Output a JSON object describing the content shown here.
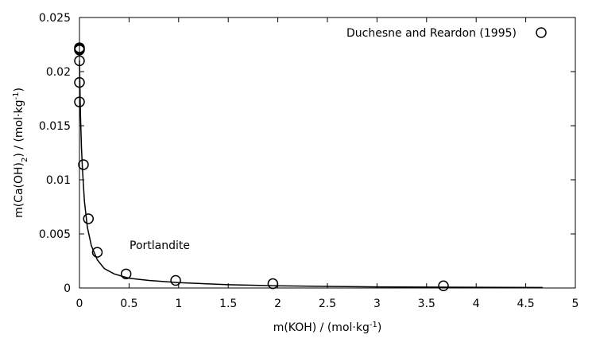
{
  "chart_data": {
    "type": "scatter",
    "xlabel": "m(KOH) / (mol·kg",
    "xlabel_sup": "-1",
    "xlabel_end": ")",
    "ylabel_pre": "m(Ca(OH)",
    "ylabel_sub": "2",
    "ylabel_mid": ") / (mol·kg",
    "ylabel_sup": "-1",
    "ylabel_end": ")",
    "xlim": [
      0,
      5
    ],
    "ylim": [
      0,
      0.025
    ],
    "x_ticks": [
      "0",
      "0.5",
      "1",
      "1.5",
      "2",
      "2.5",
      "3",
      "3.5",
      "4",
      "4.5",
      "5"
    ],
    "y_ticks": [
      "0",
      "0.005",
      "0.01",
      "0.015",
      "0.02",
      "0.025"
    ],
    "grid": false,
    "legend_position": "top-right",
    "annotation": "Portlandite",
    "series": [
      {
        "name": "Duchesne and Reardon (1995)",
        "kind": "points",
        "marker": "open-circle",
        "x": [
          0.0,
          0.0,
          0.0,
          0.0,
          0.0,
          0.0,
          0.04,
          0.09,
          0.18,
          0.47,
          0.97,
          1.95,
          3.67
        ],
        "y": [
          0.0222,
          0.0221,
          0.022,
          0.021,
          0.019,
          0.0172,
          0.0114,
          0.0064,
          0.0033,
          0.0013,
          0.0007,
          0.0004,
          0.0002
        ]
      },
      {
        "kind": "line",
        "x": [
          0.0,
          0.005,
          0.01,
          0.02,
          0.03,
          0.05,
          0.08,
          0.12,
          0.18,
          0.25,
          0.35,
          0.5,
          0.7,
          1.0,
          1.5,
          2.0,
          2.5,
          3.0,
          3.5,
          4.0,
          4.67
        ],
        "y": [
          0.021,
          0.0185,
          0.016,
          0.013,
          0.011,
          0.008,
          0.0056,
          0.0039,
          0.0026,
          0.0018,
          0.0013,
          0.0009,
          0.0007,
          0.0005,
          0.0003,
          0.0002,
          0.00015,
          0.0001,
          8e-05,
          6e-05,
          5e-05
        ]
      }
    ]
  }
}
